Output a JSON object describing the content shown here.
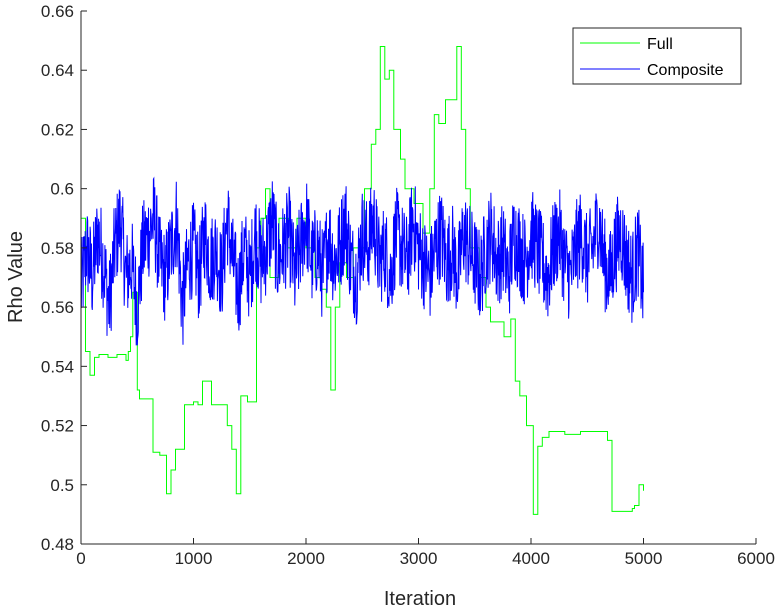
{
  "chart_data": {
    "type": "line",
    "title": "",
    "xlabel": "Iteration",
    "ylabel": "Rho Value",
    "xlim": [
      0,
      6000
    ],
    "ylim": [
      0.48,
      0.66
    ],
    "xticks": [
      0,
      1000,
      2000,
      3000,
      4000,
      5000,
      6000
    ],
    "xtick_labels": [
      "0",
      "1000",
      "2000",
      "3000",
      "4000",
      "5000",
      "6000"
    ],
    "yticks": [
      0.48,
      0.5,
      0.52,
      0.54,
      0.56,
      0.58,
      0.6,
      0.62,
      0.64,
      0.66
    ],
    "ytick_labels": [
      "0.48",
      "0.5",
      "0.52",
      "0.54",
      "0.56",
      "0.58",
      "0.6",
      "0.62",
      "0.64",
      "0.66"
    ],
    "grid": false,
    "legend_position": "top-right",
    "series": [
      {
        "name": "Full",
        "color": "#00ff00",
        "style": "step",
        "x": [
          0,
          40,
          80,
          120,
          160,
          240,
          320,
          400,
          420,
          440,
          460,
          500,
          520,
          560,
          640,
          700,
          760,
          800,
          840,
          920,
          1000,
          1040,
          1080,
          1160,
          1200,
          1260,
          1300,
          1340,
          1380,
          1420,
          1480,
          1520,
          1560,
          1600,
          1640,
          1680,
          1760,
          1840,
          1920,
          2000,
          2080,
          2140,
          2180,
          2220,
          2260,
          2300,
          2360,
          2420,
          2480,
          2520,
          2580,
          2620,
          2660,
          2700,
          2740,
          2780,
          2840,
          2880,
          2960,
          3040,
          3100,
          3140,
          3180,
          3240,
          3300,
          3340,
          3380,
          3420,
          3460,
          3540,
          3600,
          3640,
          3700,
          3760,
          3820,
          3860,
          3900,
          3960,
          4020,
          4060,
          4100,
          4160,
          4300,
          4440,
          4560,
          4680,
          4720,
          4900,
          4920,
          4960,
          5000
        ],
        "y": [
          0.59,
          0.545,
          0.537,
          0.543,
          0.544,
          0.543,
          0.544,
          0.542,
          0.545,
          0.55,
          0.565,
          0.532,
          0.529,
          0.529,
          0.511,
          0.51,
          0.497,
          0.505,
          0.512,
          0.527,
          0.528,
          0.527,
          0.535,
          0.527,
          0.527,
          0.527,
          0.52,
          0.512,
          0.497,
          0.53,
          0.528,
          0.528,
          0.58,
          0.59,
          0.6,
          0.57,
          0.59,
          0.58,
          0.59,
          0.58,
          0.57,
          0.566,
          0.56,
          0.532,
          0.56,
          0.575,
          0.57,
          0.58,
          0.58,
          0.6,
          0.615,
          0.62,
          0.648,
          0.637,
          0.64,
          0.62,
          0.61,
          0.6,
          0.595,
          0.585,
          0.6,
          0.625,
          0.622,
          0.63,
          0.63,
          0.648,
          0.62,
          0.6,
          0.58,
          0.57,
          0.56,
          0.555,
          0.555,
          0.55,
          0.556,
          0.535,
          0.53,
          0.52,
          0.49,
          0.513,
          0.516,
          0.518,
          0.517,
          0.518,
          0.518,
          0.515,
          0.491,
          0.492,
          0.493,
          0.5,
          0.498
        ]
      },
      {
        "name": "Composite",
        "color": "#0000ff",
        "style": "noisy",
        "x": [
          0,
          50,
          100,
          150,
          200,
          250,
          300,
          350,
          400,
          450,
          500,
          550,
          600,
          650,
          700,
          750,
          800,
          850,
          900,
          950,
          1000,
          1050,
          1100,
          1150,
          1200,
          1250,
          1300,
          1350,
          1400,
          1450,
          1500,
          1550,
          1600,
          1650,
          1700,
          1750,
          1800,
          1850,
          1900,
          1950,
          2000,
          2050,
          2100,
          2150,
          2200,
          2250,
          2300,
          2350,
          2400,
          2450,
          2500,
          2550,
          2600,
          2650,
          2700,
          2750,
          2800,
          2850,
          2900,
          2950,
          3000,
          3050,
          3100,
          3150,
          3200,
          3250,
          3300,
          3350,
          3400,
          3450,
          3500,
          3550,
          3600,
          3650,
          3700,
          3750,
          3800,
          3850,
          3900,
          3950,
          4000,
          4050,
          4100,
          4150,
          4200,
          4250,
          4300,
          4350,
          4400,
          4450,
          4500,
          4550,
          4600,
          4650,
          4700,
          4750,
          4800,
          4850,
          4900,
          4950,
          5000
        ],
        "y": [
          0.565,
          0.58,
          0.57,
          0.585,
          0.575,
          0.56,
          0.58,
          0.59,
          0.57,
          0.575,
          0.56,
          0.58,
          0.585,
          0.59,
          0.575,
          0.57,
          0.58,
          0.59,
          0.56,
          0.575,
          0.58,
          0.57,
          0.585,
          0.575,
          0.58,
          0.57,
          0.59,
          0.575,
          0.565,
          0.58,
          0.57,
          0.585,
          0.575,
          0.58,
          0.59,
          0.575,
          0.58,
          0.585,
          0.57,
          0.58,
          0.59,
          0.575,
          0.58,
          0.57,
          0.585,
          0.575,
          0.58,
          0.59,
          0.575,
          0.57,
          0.585,
          0.58,
          0.59,
          0.575,
          0.58,
          0.57,
          0.585,
          0.58,
          0.575,
          0.59,
          0.58,
          0.575,
          0.57,
          0.58,
          0.585,
          0.575,
          0.58,
          0.57,
          0.585,
          0.58,
          0.575,
          0.57,
          0.58,
          0.585,
          0.575,
          0.58,
          0.57,
          0.585,
          0.58,
          0.575,
          0.585,
          0.58,
          0.575,
          0.57,
          0.58,
          0.585,
          0.575,
          0.57,
          0.58,
          0.585,
          0.575,
          0.58,
          0.59,
          0.575,
          0.57,
          0.58,
          0.585,
          0.575,
          0.57,
          0.58,
          0.565
        ],
        "noise_amplitude": 0.016
      }
    ]
  }
}
